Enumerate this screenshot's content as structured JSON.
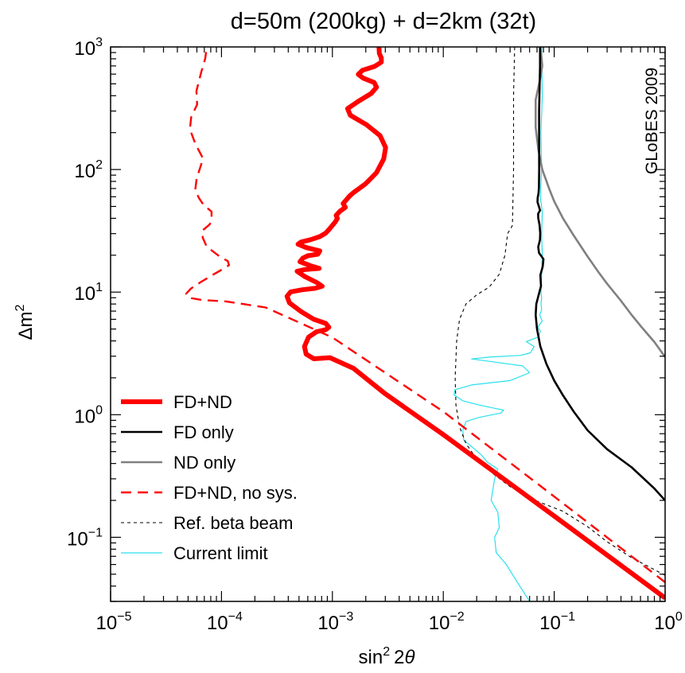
{
  "chart_data": {
    "type": "line",
    "title": "d=50m (200kg) + d=2km (32t)",
    "watermark": "GLoBES 2009",
    "xlabel": "sin² 2θ",
    "ylabel": "Δm²",
    "x_scale": "log",
    "y_scale": "log",
    "xlim": [
      1e-05,
      1
    ],
    "ylim": [
      0.03,
      1000
    ],
    "x_ticks": [
      {
        "value": 1e-05,
        "base": "10",
        "exp": "−5"
      },
      {
        "value": 0.0001,
        "base": "10",
        "exp": "−4"
      },
      {
        "value": 0.001,
        "base": "10",
        "exp": "−3"
      },
      {
        "value": 0.01,
        "base": "10",
        "exp": "−2"
      },
      {
        "value": 0.1,
        "base": "10",
        "exp": "−1"
      },
      {
        "value": 1,
        "base": "10",
        "exp": "0"
      }
    ],
    "y_ticks": [
      {
        "value": 0.1,
        "base": "10",
        "exp": "−1"
      },
      {
        "value": 1,
        "base": "10",
        "exp": "0"
      },
      {
        "value": 10,
        "base": "10",
        "exp": "1"
      },
      {
        "value": 100,
        "base": "10",
        "exp": "2"
      },
      {
        "value": 1000,
        "base": "10",
        "exp": "3"
      }
    ],
    "legend_position": "bottom-left",
    "series": [
      {
        "name": "FD+ND",
        "color": "#ff0000",
        "style": "solid-thick",
        "points": [
          [
            1,
            0.032
          ],
          [
            0.1,
            0.149
          ],
          [
            0.01,
            0.688
          ],
          [
            0.003,
            1.48
          ],
          [
            0.00155,
            2.39
          ],
          [
            0.00095,
            2.92
          ],
          [
            0.00068,
            2.86
          ],
          [
            0.00058,
            3.12
          ],
          [
            0.00056,
            3.6
          ],
          [
            0.00061,
            4.3
          ],
          [
            0.00072,
            4.75
          ],
          [
            0.00087,
            4.94
          ],
          [
            0.00093,
            5.17
          ],
          [
            0.00087,
            5.56
          ],
          [
            0.00068,
            6.0
          ],
          [
            0.00052,
            6.96
          ],
          [
            0.00041,
            8.18
          ],
          [
            0.00039,
            9.24
          ],
          [
            0.00042,
            10.05
          ],
          [
            0.00053,
            10.44
          ],
          [
            0.0007,
            10.74
          ],
          [
            0.00081,
            11.17
          ],
          [
            0.00072,
            12.0
          ],
          [
            0.00056,
            13.45
          ],
          [
            0.00048,
            14.8
          ],
          [
            0.00057,
            15.3
          ],
          [
            0.00076,
            15.6
          ],
          [
            0.00065,
            16.3
          ],
          [
            0.00051,
            17.7
          ],
          [
            0.00054,
            18.9
          ],
          [
            0.0006,
            19.8
          ],
          [
            0.00074,
            20.4
          ],
          [
            0.00077,
            21.7
          ],
          [
            0.00058,
            23.1
          ],
          [
            0.00049,
            24.6
          ],
          [
            0.00052,
            25.6
          ],
          [
            0.00064,
            26.8
          ],
          [
            0.00077,
            28.4
          ],
          [
            0.00087,
            30.3
          ],
          [
            0.00093,
            32.3
          ],
          [
            0.00106,
            37.3
          ],
          [
            0.00111,
            39.9
          ],
          [
            0.00108,
            42.2
          ],
          [
            0.00117,
            45.7
          ],
          [
            0.00131,
            49.1
          ],
          [
            0.00125,
            52.8
          ],
          [
            0.00144,
            61.3
          ],
          [
            0.00157,
            65.4
          ],
          [
            0.00174,
            69.9
          ],
          [
            0.00197,
            75.9
          ],
          [
            0.00217,
            82.7
          ],
          [
            0.0025,
            94.5
          ],
          [
            0.0029,
            122
          ],
          [
            0.00302,
            151
          ],
          [
            0.00269,
            189
          ],
          [
            0.00203,
            232
          ],
          [
            0.00145,
            277
          ],
          [
            0.00137,
            314
          ],
          [
            0.00174,
            363
          ],
          [
            0.00224,
            417
          ],
          [
            0.0025,
            469
          ],
          [
            0.00238,
            513
          ],
          [
            0.0019,
            556
          ],
          [
            0.00171,
            597
          ],
          [
            0.00187,
            645
          ],
          [
            0.0024,
            693
          ],
          [
            0.00276,
            752
          ],
          [
            0.00276,
            813
          ],
          [
            0.00265,
            883
          ],
          [
            0.00263,
            1000
          ]
        ]
      },
      {
        "name": "FD only",
        "color": "#000000",
        "style": "solid",
        "points": [
          [
            1,
            0.2
          ],
          [
            0.8,
            0.25
          ],
          [
            0.5,
            0.372
          ],
          [
            0.3,
            0.523
          ],
          [
            0.2,
            0.745
          ],
          [
            0.15,
            1.06
          ],
          [
            0.12,
            1.44
          ],
          [
            0.1,
            1.9
          ],
          [
            0.085,
            2.6
          ],
          [
            0.075,
            3.6
          ],
          [
            0.07,
            5.0
          ],
          [
            0.068,
            6.5
          ],
          [
            0.069,
            8.0
          ],
          [
            0.0725,
            9.5
          ],
          [
            0.076,
            11.2
          ],
          [
            0.075,
            13.8
          ],
          [
            0.0788,
            16.2
          ],
          [
            0.08,
            18.6
          ],
          [
            0.073,
            20.9
          ],
          [
            0.0718,
            23.4
          ],
          [
            0.0744,
            26.6
          ],
          [
            0.0748,
            30.3
          ],
          [
            0.0738,
            35.2
          ],
          [
            0.0718,
            40.3
          ],
          [
            0.0716,
            43.7
          ],
          [
            0.0745,
            46.3
          ],
          [
            0.0731,
            49.4
          ],
          [
            0.0707,
            54.3
          ],
          [
            0.0709,
            58.8
          ],
          [
            0.0721,
            63.5
          ],
          [
            0.0728,
            71
          ],
          [
            0.0732,
            100
          ],
          [
            0.0731,
            300
          ],
          [
            0.0745,
            700
          ],
          [
            0.0745,
            1000
          ]
        ]
      },
      {
        "name": "ND only",
        "color": "#808080",
        "style": "solid",
        "points": [
          [
            1,
            2.96
          ],
          [
            0.8,
            3.92
          ],
          [
            0.6,
            5.31
          ],
          [
            0.5,
            6.5
          ],
          [
            0.4,
            8.5
          ],
          [
            0.3,
            11.7
          ],
          [
            0.25,
            14.6
          ],
          [
            0.2,
            19.5
          ],
          [
            0.15,
            29
          ],
          [
            0.12,
            40
          ],
          [
            0.1,
            55
          ],
          [
            0.09,
            70
          ],
          [
            0.078,
            100
          ],
          [
            0.072,
            145
          ],
          [
            0.068,
            220
          ],
          [
            0.068,
            370
          ],
          [
            0.075,
            560
          ],
          [
            0.078,
            700
          ],
          [
            0.077,
            800
          ],
          [
            0.075,
            1000
          ]
        ]
      },
      {
        "name": "FD+ND, no sys.",
        "color": "#ff0000",
        "style": "dashed",
        "points": [
          [
            1,
            0.043
          ],
          [
            0.1,
            0.215
          ],
          [
            0.01,
            1.06
          ],
          [
            0.001,
            4.27
          ],
          [
            0.00025,
            7.5
          ],
          [
            0.00011,
            8.4
          ],
          [
            6.65e-05,
            8.62
          ],
          [
            5.1e-05,
            9.0
          ],
          [
            4.8e-05,
            9.7
          ],
          [
            5.3e-05,
            10.7
          ],
          [
            6.63e-05,
            12.2
          ],
          [
            8.42e-05,
            13.9
          ],
          [
            0.0001,
            15.2
          ],
          [
            0.000117,
            16.6
          ],
          [
            0.000114,
            17.9
          ],
          [
            9.62e-05,
            19.5
          ],
          [
            7.35e-05,
            23.5
          ],
          [
            6.77e-05,
            27.8
          ],
          [
            6.71e-05,
            31.7
          ],
          [
            7.82e-05,
            35.6
          ],
          [
            8.13e-05,
            38.5
          ],
          [
            8.13e-05,
            45.4
          ],
          [
            6.89e-05,
            51.5
          ],
          [
            6.29e-05,
            58.2
          ],
          [
            5.79e-05,
            67.4
          ],
          [
            5.97e-05,
            84.6
          ],
          [
            6.83e-05,
            123
          ],
          [
            5.85e-05,
            160
          ],
          [
            5.19e-05,
            213
          ],
          [
            5.33e-05,
            267
          ],
          [
            6.03e-05,
            340
          ],
          [
            5.94e-05,
            437
          ],
          [
            6.56e-05,
            622
          ],
          [
            7.13e-05,
            802
          ],
          [
            7.38e-05,
            1000
          ]
        ]
      },
      {
        "name": "Ref. beta beam",
        "color": "#000000",
        "style": "dashed-thin",
        "points": [
          [
            1,
            0.049
          ],
          [
            0.7,
            0.058
          ],
          [
            0.5,
            0.068
          ],
          [
            0.3,
            0.092
          ],
          [
            0.2,
            0.122
          ],
          [
            0.12,
            0.163
          ],
          [
            0.07,
            0.197
          ],
          [
            0.04,
            0.259
          ],
          [
            0.028,
            0.331
          ],
          [
            0.02,
            0.436
          ],
          [
            0.016,
            0.58
          ],
          [
            0.014,
            0.8
          ],
          [
            0.013,
            1.2
          ],
          [
            0.0128,
            2.0
          ],
          [
            0.0132,
            4.0
          ],
          [
            0.014,
            6.0
          ],
          [
            0.016,
            8.0
          ],
          [
            0.02,
            9.5
          ],
          [
            0.026,
            11.0
          ],
          [
            0.032,
            14.0
          ],
          [
            0.036,
            20.0
          ],
          [
            0.038,
            30.0
          ],
          [
            0.042,
            35.0
          ],
          [
            0.043,
            100
          ],
          [
            0.043,
            400
          ],
          [
            0.044,
            1000
          ]
        ]
      },
      {
        "name": "Current limit",
        "color": "#29e0ec",
        "style": "solid-thin",
        "points": [
          [
            0.06,
            0.03
          ],
          [
            0.045,
            0.045
          ],
          [
            0.037,
            0.06
          ],
          [
            0.03,
            0.075
          ],
          [
            0.029,
            0.1
          ],
          [
            0.032,
            0.12
          ],
          [
            0.031,
            0.16
          ],
          [
            0.027,
            0.2
          ],
          [
            0.029,
            0.3
          ],
          [
            0.031,
            0.36
          ],
          [
            0.025,
            0.41
          ],
          [
            0.022,
            0.47
          ],
          [
            0.018,
            0.55
          ],
          [
            0.0153,
            0.62
          ],
          [
            0.015,
            0.75
          ],
          [
            0.016,
            0.88
          ],
          [
            0.021,
            0.95
          ],
          [
            0.033,
            1.03
          ],
          [
            0.035,
            1.09
          ],
          [
            0.03,
            1.12
          ],
          [
            0.021,
            1.2
          ],
          [
            0.015,
            1.3
          ],
          [
            0.0125,
            1.45
          ],
          [
            0.0127,
            1.6
          ],
          [
            0.018,
            1.75
          ],
          [
            0.04,
            1.9
          ],
          [
            0.06,
            2.2
          ],
          [
            0.052,
            2.5
          ],
          [
            0.028,
            2.7
          ],
          [
            0.018,
            2.85
          ],
          [
            0.026,
            2.95
          ],
          [
            0.05,
            3.05
          ],
          [
            0.061,
            3.2
          ],
          [
            0.066,
            3.6
          ],
          [
            0.056,
            3.95
          ],
          [
            0.072,
            4.3
          ],
          [
            0.075,
            4.8
          ],
          [
            0.071,
            5.2
          ],
          [
            0.078,
            5.8
          ],
          [
            0.074,
            6.5
          ],
          [
            0.077,
            7.2
          ],
          [
            0.076,
            8.0
          ],
          [
            0.077,
            9.0
          ],
          [
            0.076,
            10.0
          ],
          [
            0.078,
            20.0
          ],
          [
            0.077,
            30.0
          ],
          [
            0.078,
            45.0
          ],
          [
            0.075,
            60.0
          ],
          [
            0.077,
            100
          ],
          [
            0.076,
            200
          ],
          [
            0.078,
            400
          ],
          [
            0.077,
            1000
          ]
        ]
      }
    ]
  }
}
